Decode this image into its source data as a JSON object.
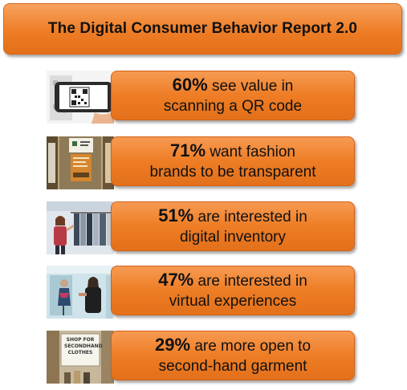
{
  "header": {
    "title": "The Digital Consumer Behavior Report 2.0"
  },
  "stats": [
    {
      "percent": "60%",
      "text_line1": "see value in",
      "text_line2": "scanning a QR code",
      "image_icon": "qr-code-phone-image"
    },
    {
      "percent": "71%",
      "text_line1": "want fashion",
      "text_line2": "brands to be transparent",
      "image_icon": "store-signage-image"
    },
    {
      "percent": "51%",
      "text_line1": "are interested in",
      "text_line2": "digital inventory",
      "image_icon": "clothing-rack-shopper-image"
    },
    {
      "percent": "47%",
      "text_line1": "are interested in",
      "text_line2": "virtual experiences",
      "image_icon": "store-mannequin-image"
    },
    {
      "percent": "29%",
      "text_line1": "are more open to",
      "text_line2": "second-hand garment",
      "image_icon": "secondhand-sign-image",
      "image_text": "SHOP FOR SECONDHAND CLOTHES"
    }
  ],
  "colors": {
    "accent": "#ee7d25",
    "text": "#111111"
  }
}
